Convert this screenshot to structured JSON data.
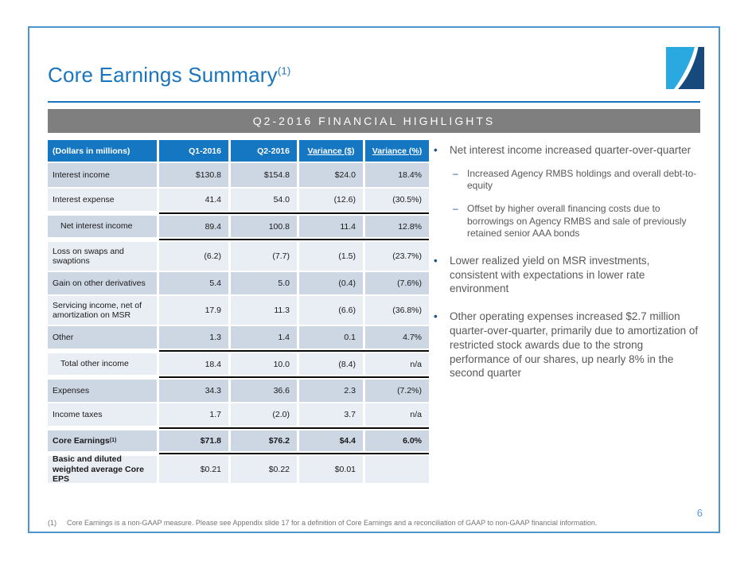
{
  "slide": {
    "title": "Core Earnings Summary",
    "title_sup": "(1)",
    "banner": "Q2-2016 FINANCIAL HIGHLIGHTS",
    "page_number": "6",
    "footnote_marker": "(1)",
    "footnote": "Core Earnings is a non-GAAP measure.  Please see Appendix slide 17 for a definition of Core Earnings and a reconciliation of GAAP to non-GAAP financial information."
  },
  "colors": {
    "title_blue": "#1B75BC",
    "table_header_blue": "#1577C2",
    "row_dark": "#CDD6E3",
    "row_light": "#E9EDF4",
    "banner_gray": "#7F7F7F",
    "border_blue": "#4E94CE",
    "bullet_marker_blue": "#1F4E8C",
    "body_text_gray": "#58595B",
    "logo_light_blue": "#2AA9E0",
    "logo_navy": "#174A7C"
  },
  "table": {
    "columns": [
      "(Dollars in millions)",
      "Q1-2016",
      "Q2-2016",
      "Variance ($)",
      "Variance (%)"
    ],
    "rows": [
      {
        "label": "Interest income",
        "values": [
          "$130.8",
          "$154.8",
          "$24.0",
          "18.4%"
        ],
        "shade": "dark"
      },
      {
        "label": "Interest expense",
        "values": [
          "41.4",
          "54.0",
          "(12.6)",
          "(30.5%)"
        ],
        "shade": "light",
        "line_below": true
      },
      {
        "label": "Net interest income",
        "values": [
          "89.4",
          "100.8",
          "11.4",
          "12.8%"
        ],
        "shade": "dark",
        "indent": true,
        "line_below": true
      },
      {
        "label": "Loss on swaps and swaptions",
        "values": [
          "(6.2)",
          "(7.7)",
          "(1.5)",
          "(23.7%)"
        ],
        "shade": "light"
      },
      {
        "label": "Gain on other derivatives",
        "values": [
          "5.4",
          "5.0",
          "(0.4)",
          "(7.6%)"
        ],
        "shade": "dark"
      },
      {
        "label": "Servicing income, net of amortization on MSR",
        "values": [
          "17.9",
          "11.3",
          "(6.6)",
          "(36.8%)"
        ],
        "shade": "light"
      },
      {
        "label": "Other",
        "values": [
          "1.3",
          "1.4",
          "0.1",
          "4.7%"
        ],
        "shade": "dark",
        "line_below": true
      },
      {
        "label": "Total other income",
        "values": [
          "18.4",
          "10.0",
          "(8.4)",
          "n/a"
        ],
        "shade": "light",
        "indent": true,
        "line_below": true
      },
      {
        "label": "Expenses",
        "values": [
          "34.3",
          "36.6",
          "2.3",
          "(7.2%)"
        ],
        "shade": "dark"
      },
      {
        "label": "Income taxes",
        "values": [
          "1.7",
          "(2.0)",
          "3.7",
          "n/a"
        ],
        "shade": "light",
        "line_below": true
      },
      {
        "label": "Core Earnings",
        "label_sup": "(1)",
        "values": [
          "$71.8",
          "$76.2",
          "$4.4",
          "6.0%"
        ],
        "shade": "dark",
        "bold": true,
        "line_below": true
      },
      {
        "label": "Basic and diluted weighted average Core EPS",
        "values": [
          "$0.21",
          "$0.22",
          "$0.01",
          ""
        ],
        "shade": "light",
        "label_bold": true
      }
    ]
  },
  "bullets": [
    {
      "text": "Net interest income increased quarter-over-quarter",
      "subs": [
        "Increased Agency RMBS holdings and overall debt-to-equity",
        "Offset by higher overall financing costs due to borrowings on Agency RMBS and sale of previously retained senior AAA bonds"
      ]
    },
    {
      "text": "Lower realized yield on MSR investments, consistent with expectations in lower rate environment",
      "subs": []
    },
    {
      "text": "Other operating expenses increased $2.7 million quarter-over-quarter, primarily due to amortization of restricted stock awards due to the strong performance of our shares, up nearly 8% in the second quarter",
      "subs": []
    }
  ]
}
